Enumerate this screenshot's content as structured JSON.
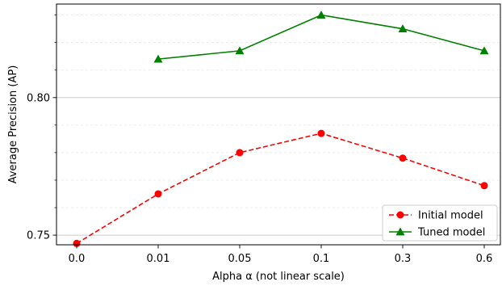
{
  "chart_data": {
    "type": "line",
    "xlabel": "Alpha α (not linear scale)",
    "ylabel": "Average Precision (AP)",
    "categories": [
      "0.0",
      "0.01",
      "0.05",
      "0.1",
      "0.3",
      "0.6"
    ],
    "ylim": [
      0.7465,
      0.834
    ],
    "yticks_major": [
      0.75,
      0.8
    ],
    "ytick_labels": [
      "0.75",
      "0.80"
    ],
    "yticks_minor": [
      0.76,
      0.77,
      0.78,
      0.79,
      0.81,
      0.82,
      0.83
    ],
    "grid": {
      "major": true,
      "minor": true
    },
    "legend_position": "lower-right",
    "series": [
      {
        "name": "Initial model",
        "color": "#ff0000",
        "linestyle": "dashed",
        "marker": "circle",
        "values": [
          0.747,
          0.765,
          0.78,
          0.787,
          0.778,
          0.768
        ]
      },
      {
        "name": "Tuned model",
        "color": "#008000",
        "linestyle": "solid",
        "marker": "triangle",
        "values": [
          null,
          0.814,
          0.817,
          0.83,
          0.825,
          0.817
        ]
      }
    ]
  }
}
